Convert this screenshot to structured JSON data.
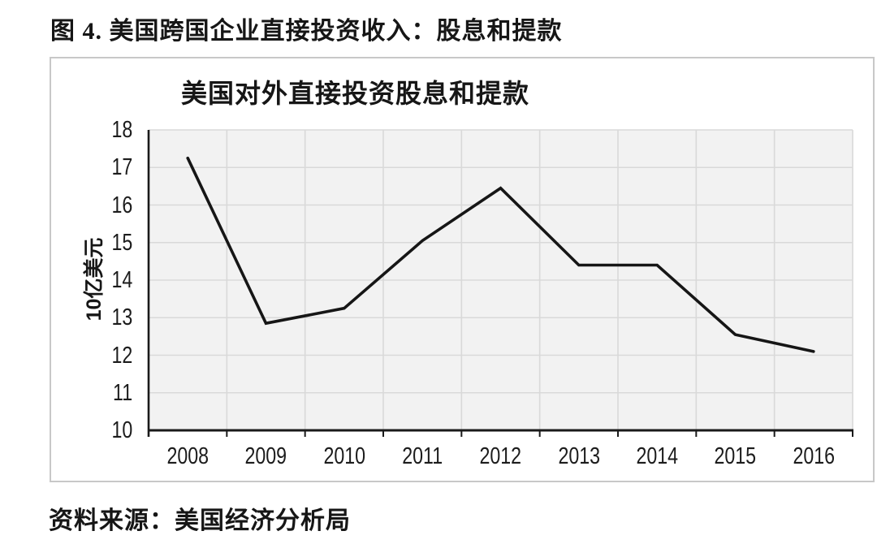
{
  "page": {
    "title": "图 4. 美国跨国企业直接投资收入：股息和提款",
    "source": "资料来源：美国经济分析局"
  },
  "chart_data": {
    "type": "line",
    "title": "美国对外直接投资股息和提款",
    "xlabel": "",
    "ylabel": "10亿美元",
    "categories": [
      "2008",
      "2009",
      "2010",
      "2011",
      "2012",
      "2013",
      "2014",
      "2015",
      "2016"
    ],
    "values": [
      17.25,
      12.85,
      13.25,
      15.05,
      16.45,
      14.4,
      14.4,
      12.55,
      12.1
    ],
    "ylim": [
      10,
      18
    ],
    "ytick_step": 1,
    "grid": true,
    "legend": "none",
    "colors": {
      "line": "#161616",
      "plot_bg": "#f2f2f2",
      "grid": "#d9d9d9",
      "axis": "#1a1a1a",
      "box_border": "#c8c8c8",
      "text": "#1c1c1c"
    }
  }
}
